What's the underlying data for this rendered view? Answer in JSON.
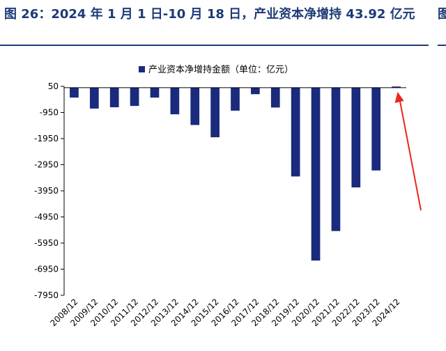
{
  "figure": {
    "title": "图 26：2024 年 1 月 1 日-10 月 18 日，产业资本净增持 43.92 亿元",
    "title_right_fragment": "图"
  },
  "chart_data": {
    "type": "bar",
    "title": "",
    "xlabel": "",
    "ylabel": "",
    "legend": {
      "entries": [
        "产业资本净增持金额（单位：亿元）"
      ],
      "placement": "top"
    },
    "categories": [
      "2008/12",
      "2009/12",
      "2010/12",
      "2011/12",
      "2012/12",
      "2013/12",
      "2014/12",
      "2015/12",
      "2016/12",
      "2017/12",
      "2018/12",
      "2019/12",
      "2020/12",
      "2021/12",
      "2022/12",
      "2023/12",
      "2024/12"
    ],
    "series": [
      {
        "name": "产业资本净增持金额（单位：亿元）",
        "values": [
          -380,
          -800,
          -750,
          -700,
          -380,
          -1020,
          -1430,
          -1900,
          -880,
          -250,
          -760,
          -3400,
          -6620,
          -5490,
          -3820,
          -3170,
          43.92
        ]
      }
    ],
    "ylim": [
      -7950,
      50
    ],
    "yticks": [
      50,
      -950,
      -1950,
      -2950,
      -3950,
      -4950,
      -5950,
      -6950,
      -7950
    ],
    "grid": false,
    "bar_color": "#1a2a7c",
    "annotation": {
      "type": "arrow",
      "color": "#e8281e",
      "points_to": "2024/12"
    }
  }
}
